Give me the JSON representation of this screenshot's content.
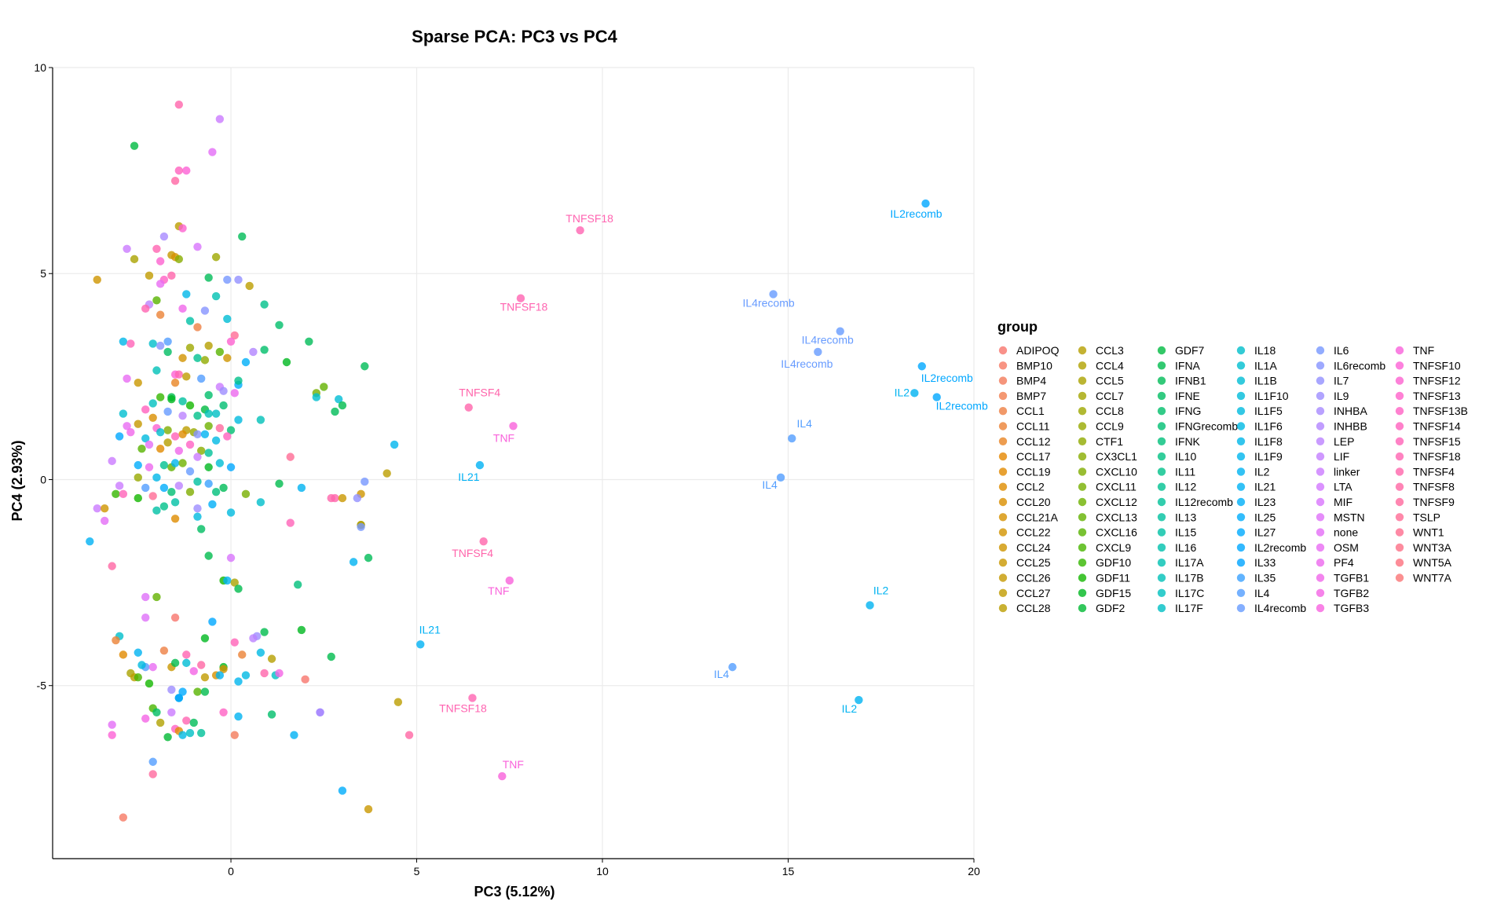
{
  "chart_data": {
    "type": "scatter",
    "title": "Sparse PCA: PC3 vs PC4",
    "xlabel": "PC3 (5.12%)",
    "ylabel": "PC4 (2.93%)",
    "xlim": [
      -4.8,
      20
    ],
    "ylim": [
      -9.2,
      10
    ],
    "x_ticks": [
      0,
      5,
      10,
      15,
      20
    ],
    "y_ticks": [
      -5,
      0,
      5,
      10
    ],
    "grid": true,
    "legend_position": "right",
    "legend_title": "group",
    "groups": [
      "ADIPOQ",
      "BMP10",
      "BMP4",
      "BMP7",
      "CCL1",
      "CCL11",
      "CCL12",
      "CCL17",
      "CCL19",
      "CCL2",
      "CCL20",
      "CCL21A",
      "CCL22",
      "CCL24",
      "CCL25",
      "CCL26",
      "CCL27",
      "CCL28",
      "CCL3",
      "CCL4",
      "CCL5",
      "CCL7",
      "CCL8",
      "CCL9",
      "CTF1",
      "CX3CL1",
      "CXCL10",
      "CXCL11",
      "CXCL12",
      "CXCL13",
      "CXCL16",
      "CXCL9",
      "GDF10",
      "GDF11",
      "GDF15",
      "GDF2",
      "GDF7",
      "IFNA",
      "IFNB1",
      "IFNE",
      "IFNG",
      "IFNGrecomb",
      "IFNK",
      "IL10",
      "IL11",
      "IL12",
      "IL12recomb",
      "IL13",
      "IL15",
      "IL16",
      "IL17A",
      "IL17B",
      "IL17C",
      "IL17F",
      "IL18",
      "IL1A",
      "IL1B",
      "IL1F10",
      "IL1F5",
      "IL1F6",
      "IL1F8",
      "IL1F9",
      "IL2",
      "IL21",
      "IL23",
      "IL25",
      "IL27",
      "IL2recomb",
      "IL33",
      "IL35",
      "IL4",
      "IL4recomb",
      "IL6",
      "IL6recomb",
      "IL7",
      "IL9",
      "INHBA",
      "INHBB",
      "LEP",
      "LIF",
      "linker",
      "LTA",
      "MIF",
      "MSTN",
      "none",
      "OSM",
      "PF4",
      "TGFB1",
      "TGFB2",
      "TGFB3",
      "TNF",
      "TNFSF10",
      "TNFSF12",
      "TNFSF13",
      "TNFSF13B",
      "TNFSF14",
      "TNFSF15",
      "TNFSF18",
      "TNFSF4",
      "TNFSF8",
      "TNFSF9",
      "TSLP",
      "WNT1",
      "WNT3A",
      "WNT5A",
      "WNT7A"
    ],
    "labeled_points": [
      {
        "x": 9.4,
        "y": 6.05,
        "group": "TNFSF18",
        "label": "TNFSF18"
      },
      {
        "x": 7.8,
        "y": 4.4,
        "group": "TNFSF18",
        "label": "TNFSF18"
      },
      {
        "x": 6.4,
        "y": 1.75,
        "group": "TNFSF4",
        "label": "TNFSF4"
      },
      {
        "x": 7.6,
        "y": 1.3,
        "group": "TNF",
        "label": "TNF"
      },
      {
        "x": 6.7,
        "y": 0.35,
        "group": "IL21",
        "label": "IL21"
      },
      {
        "x": 6.8,
        "y": -1.5,
        "group": "TNFSF4",
        "label": "TNFSF4"
      },
      {
        "x": 7.5,
        "y": -2.45,
        "group": "TNF",
        "label": "TNF"
      },
      {
        "x": 5.1,
        "y": -4.0,
        "group": "IL21",
        "label": "IL21"
      },
      {
        "x": 6.5,
        "y": -5.3,
        "group": "TNFSF18",
        "label": "TNFSF18"
      },
      {
        "x": 7.3,
        "y": -7.2,
        "group": "TNF",
        "label": "TNF"
      },
      {
        "x": 18.7,
        "y": 6.7,
        "group": "IL2recomb",
        "label": "IL2recomb"
      },
      {
        "x": 14.6,
        "y": 4.5,
        "group": "IL4recomb",
        "label": "IL4recomb"
      },
      {
        "x": 16.4,
        "y": 3.6,
        "group": "IL4recomb",
        "label": "IL4recomb"
      },
      {
        "x": 15.8,
        "y": 3.1,
        "group": "IL4recomb",
        "label": "IL4recomb"
      },
      {
        "x": 18.6,
        "y": 2.75,
        "group": "IL2recomb",
        "label": "IL2recomb"
      },
      {
        "x": 18.4,
        "y": 2.1,
        "group": "IL2",
        "label": "IL2"
      },
      {
        "x": 19.0,
        "y": 2.0,
        "group": "IL2recomb",
        "label": "IL2recomb"
      },
      {
        "x": 15.1,
        "y": 1.0,
        "group": "IL4",
        "label": "IL4"
      },
      {
        "x": 14.8,
        "y": 0.05,
        "group": "IL4",
        "label": "IL4"
      },
      {
        "x": 17.2,
        "y": -3.05,
        "group": "IL2",
        "label": "IL2"
      },
      {
        "x": 13.5,
        "y": -4.55,
        "group": "IL4",
        "label": "IL4"
      },
      {
        "x": 16.9,
        "y": -5.35,
        "group": "IL2",
        "label": "IL2"
      }
    ],
    "points": [
      [
        -1.4,
        9.1,
        98
      ],
      [
        -0.3,
        8.75,
        80
      ],
      [
        -2.6,
        8.1,
        36
      ],
      [
        -0.5,
        7.95,
        84
      ],
      [
        -1.2,
        7.5,
        91
      ],
      [
        -1.4,
        7.5,
        95
      ],
      [
        -1.5,
        7.25,
        99
      ],
      [
        -1.4,
        6.15,
        17
      ],
      [
        -1.3,
        6.1,
        92
      ],
      [
        0.3,
        5.9,
        38
      ],
      [
        -1.8,
        5.9,
        76
      ],
      [
        -0.9,
        5.65,
        82
      ],
      [
        -2.8,
        5.6,
        80
      ],
      [
        -2.0,
        5.6,
        97
      ],
      [
        -1.6,
        5.45,
        15
      ],
      [
        -1.5,
        5.4,
        11
      ],
      [
        -2.6,
        5.35,
        20
      ],
      [
        -0.4,
        5.4,
        22
      ],
      [
        -1.9,
        5.3,
        92
      ],
      [
        -1.4,
        5.35,
        25
      ],
      [
        -3.6,
        4.85,
        13
      ],
      [
        -1.8,
        4.85,
        94
      ],
      [
        -2.2,
        4.95,
        16
      ],
      [
        -1.6,
        4.95,
        98
      ],
      [
        -1.9,
        4.75,
        85
      ],
      [
        -0.6,
        4.9,
        38
      ],
      [
        -0.1,
        4.85,
        72
      ],
      [
        0.2,
        4.85,
        74
      ],
      [
        0.5,
        4.7,
        17
      ],
      [
        0.9,
        4.25,
        44
      ],
      [
        -2.2,
        4.25,
        78
      ],
      [
        -2.0,
        4.35,
        30
      ],
      [
        -1.2,
        4.5,
        60
      ],
      [
        -0.4,
        4.45,
        50
      ],
      [
        -1.3,
        4.15,
        87
      ],
      [
        -2.3,
        4.15,
        97
      ],
      [
        -1.9,
        4.0,
        5
      ],
      [
        -0.7,
        4.1,
        73
      ],
      [
        -0.1,
        3.9,
        56
      ],
      [
        -1.1,
        3.85,
        48
      ],
      [
        1.3,
        3.75,
        40
      ],
      [
        -0.9,
        3.7,
        4
      ],
      [
        0.1,
        3.5,
        101
      ],
      [
        -2.1,
        3.3,
        54
      ],
      [
        -1.7,
        3.35,
        70
      ],
      [
        -2.9,
        3.35,
        60
      ],
      [
        -1.9,
        3.25,
        73
      ],
      [
        -2.7,
        3.3,
        96
      ],
      [
        -0.6,
        3.25,
        18
      ],
      [
        0.0,
        3.35,
        92
      ],
      [
        -1.7,
        3.1,
        39
      ],
      [
        -1.1,
        3.2,
        22
      ],
      [
        -0.3,
        3.1,
        30
      ],
      [
        0.6,
        3.1,
        77
      ],
      [
        2.1,
        3.35,
        38
      ],
      [
        0.9,
        3.15,
        40
      ],
      [
        -0.9,
        2.95,
        45
      ],
      [
        -1.3,
        2.95,
        12
      ],
      [
        -0.7,
        2.9,
        24
      ],
      [
        -0.1,
        2.95,
        13
      ],
      [
        0.4,
        2.85,
        64
      ],
      [
        1.5,
        2.85,
        34
      ],
      [
        3.6,
        2.75,
        38
      ],
      [
        -2.0,
        2.65,
        51
      ],
      [
        -1.5,
        2.55,
        91
      ],
      [
        -1.4,
        2.55,
        97
      ],
      [
        -1.2,
        2.5,
        16
      ],
      [
        -2.8,
        2.45,
        85
      ],
      [
        -1.5,
        2.35,
        6
      ],
      [
        -0.8,
        2.45,
        70
      ],
      [
        -0.3,
        2.25,
        80
      ],
      [
        0.2,
        2.3,
        65
      ],
      [
        0.2,
        2.4,
        44
      ],
      [
        2.5,
        2.25,
        29
      ],
      [
        -2.5,
        2.35,
        14
      ],
      [
        -0.2,
        2.15,
        75
      ],
      [
        0.1,
        2.1,
        86
      ],
      [
        2.3,
        2.1,
        27
      ],
      [
        2.3,
        2.0,
        55
      ],
      [
        -1.6,
        2.0,
        37
      ],
      [
        -0.6,
        2.05,
        40
      ],
      [
        -1.9,
        2.0,
        32
      ],
      [
        -1.3,
        1.9,
        47
      ],
      [
        -1.1,
        1.8,
        33
      ],
      [
        -1.6,
        1.95,
        34
      ],
      [
        -2.1,
        1.85,
        52
      ],
      [
        -0.2,
        1.8,
        41
      ],
      [
        2.9,
        1.95,
        56
      ],
      [
        3.0,
        1.8,
        37
      ],
      [
        2.8,
        1.65,
        38
      ],
      [
        -2.3,
        1.7,
        95
      ],
      [
        -2.9,
        1.6,
        55
      ],
      [
        -1.7,
        1.65,
        71
      ],
      [
        -1.3,
        1.55,
        78
      ],
      [
        -0.7,
        1.7,
        36
      ],
      [
        -0.4,
        1.6,
        53
      ],
      [
        -0.9,
        1.55,
        44
      ],
      [
        -0.6,
        1.6,
        51
      ],
      [
        -2.1,
        1.5,
        10
      ],
      [
        -2.5,
        1.35,
        15
      ],
      [
        -2.8,
        1.3,
        85
      ],
      [
        -2.0,
        1.25,
        92
      ],
      [
        -1.2,
        1.2,
        17
      ],
      [
        -1.7,
        1.2,
        26
      ],
      [
        -1.9,
        1.15,
        54
      ],
      [
        -1.3,
        1.1,
        9
      ],
      [
        -1.0,
        1.15,
        23
      ],
      [
        -0.6,
        1.3,
        28
      ],
      [
        -0.3,
        1.25,
        100
      ],
      [
        0.0,
        1.2,
        41
      ],
      [
        0.8,
        1.45,
        51
      ],
      [
        0.2,
        1.45,
        58
      ],
      [
        -1.5,
        1.05,
        96
      ],
      [
        -2.3,
        1.0,
        58
      ],
      [
        -3.0,
        1.05,
        67
      ],
      [
        -2.7,
        1.15,
        87
      ],
      [
        -0.9,
        1.1,
        73
      ],
      [
        -0.7,
        1.1,
        62
      ],
      [
        -0.1,
        1.05,
        95
      ],
      [
        -1.7,
        0.9,
        18
      ],
      [
        -1.1,
        0.85,
        94
      ],
      [
        -2.4,
        0.75,
        30
      ],
      [
        -1.9,
        0.75,
        8
      ],
      [
        -2.2,
        0.85,
        84
      ],
      [
        -0.8,
        0.7,
        25
      ],
      [
        -0.4,
        0.95,
        59
      ],
      [
        -0.6,
        0.65,
        46
      ],
      [
        -1.4,
        0.7,
        87
      ],
      [
        -0.9,
        0.55,
        80
      ],
      [
        -3.2,
        0.45,
        80
      ],
      [
        -2.5,
        0.35,
        65
      ],
      [
        -2.2,
        0.3,
        86
      ],
      [
        -1.8,
        0.35,
        45
      ],
      [
        -1.6,
        0.3,
        29
      ],
      [
        -1.5,
        0.4,
        61
      ],
      [
        -1.3,
        0.4,
        28
      ],
      [
        -0.6,
        0.3,
        34
      ],
      [
        -0.3,
        0.4,
        56
      ],
      [
        -1.1,
        0.2,
        71
      ],
      [
        0.0,
        0.3,
        67
      ],
      [
        1.6,
        0.55,
        101
      ],
      [
        4.2,
        0.15,
        17
      ],
      [
        4.4,
        0.85,
        61
      ],
      [
        -2.5,
        0.05,
        23
      ],
      [
        -2.0,
        0.05,
        60
      ],
      [
        -3.0,
        -0.15,
        80
      ],
      [
        -2.3,
        -0.2,
        70
      ],
      [
        -1.8,
        -0.2,
        65
      ],
      [
        -1.4,
        -0.15,
        78
      ],
      [
        -0.6,
        -0.1,
        69
      ],
      [
        -0.9,
        -0.05,
        47
      ],
      [
        -0.2,
        -0.2,
        38
      ],
      [
        3.6,
        -0.05,
        72
      ],
      [
        1.3,
        -0.1,
        37
      ],
      [
        1.9,
        -0.2,
        62
      ],
      [
        -3.1,
        -0.35,
        32
      ],
      [
        -2.9,
        -0.35,
        96
      ],
      [
        -2.5,
        -0.45,
        33
      ],
      [
        -2.1,
        -0.4,
        101
      ],
      [
        -1.6,
        -0.3,
        41
      ],
      [
        -1.1,
        -0.3,
        26
      ],
      [
        -0.4,
        -0.3,
        42
      ],
      [
        0.4,
        -0.35,
        27
      ],
      [
        3.5,
        -0.35,
        13
      ],
      [
        -3.6,
        -0.7,
        80
      ],
      [
        -3.4,
        -0.7,
        13
      ],
      [
        -1.8,
        -0.65,
        44
      ],
      [
        -1.5,
        -0.55,
        48
      ],
      [
        -0.9,
        -0.7,
        75
      ],
      [
        -0.5,
        -0.6,
        64
      ],
      [
        0.8,
        -0.55,
        54
      ],
      [
        2.7,
        -0.45,
        98
      ],
      [
        2.8,
        -0.45,
        98
      ],
      [
        3.0,
        -0.45,
        14
      ],
      [
        3.4,
        -0.45,
        74
      ],
      [
        -3.4,
        -1.0,
        84
      ],
      [
        -2.0,
        -0.75,
        48
      ],
      [
        -1.5,
        -0.95,
        9
      ],
      [
        -0.9,
        -0.9,
        58
      ],
      [
        0.0,
        -0.8,
        58
      ],
      [
        1.6,
        -1.05,
        96
      ],
      [
        3.5,
        -1.1,
        26
      ],
      [
        3.5,
        -1.1,
        17
      ],
      [
        3.5,
        -1.15,
        72
      ],
      [
        -3.8,
        -1.5,
        63
      ],
      [
        -0.8,
        -1.2,
        39
      ],
      [
        -3.2,
        -2.1,
        99
      ],
      [
        -0.6,
        -1.85,
        37
      ],
      [
        0.0,
        -1.9,
        82
      ],
      [
        3.3,
        -2.0,
        62
      ],
      [
        3.7,
        -1.9,
        38
      ],
      [
        -0.2,
        -2.45,
        33
      ],
      [
        -0.1,
        -2.45,
        62
      ],
      [
        0.1,
        -2.5,
        20
      ],
      [
        1.8,
        -2.55,
        42
      ],
      [
        0.2,
        -2.65,
        37
      ],
      [
        -2.0,
        -2.85,
        29
      ],
      [
        -2.3,
        -2.85,
        83
      ],
      [
        -1.5,
        -3.35,
        0
      ],
      [
        -0.5,
        -3.45,
        67
      ],
      [
        -2.3,
        -3.35,
        83
      ],
      [
        -3.0,
        -3.8,
        54
      ],
      [
        -3.1,
        -3.9,
        5
      ],
      [
        -0.7,
        -3.85,
        34
      ],
      [
        0.7,
        -3.8,
        75
      ],
      [
        0.6,
        -3.85,
        78
      ],
      [
        0.9,
        -3.7,
        37
      ],
      [
        1.9,
        -3.65,
        34
      ],
      [
        0.3,
        -4.25,
        5
      ],
      [
        -2.9,
        -4.25,
        8
      ],
      [
        -2.5,
        -4.2,
        62
      ],
      [
        -1.8,
        -4.15,
        4
      ],
      [
        -1.2,
        -4.25,
        97
      ],
      [
        0.8,
        -4.2,
        59
      ],
      [
        1.1,
        -4.35,
        18
      ],
      [
        0.1,
        -3.95,
        96
      ],
      [
        2.7,
        -4.3,
        37
      ],
      [
        -2.3,
        -4.55,
        70
      ],
      [
        -2.4,
        -4.5,
        58
      ],
      [
        -2.1,
        -4.55,
        85
      ],
      [
        -1.6,
        -4.55,
        14
      ],
      [
        -1.5,
        -4.45,
        37
      ],
      [
        -1.2,
        -4.45,
        56
      ],
      [
        -0.8,
        -4.5,
        99
      ],
      [
        -0.2,
        -4.55,
        34
      ],
      [
        -0.2,
        -4.6,
        12
      ],
      [
        -2.7,
        -4.7,
        20
      ],
      [
        -2.6,
        -4.8,
        17
      ],
      [
        -2.5,
        -4.8,
        31
      ],
      [
        -2.2,
        -4.95,
        33
      ],
      [
        -1.0,
        -4.65,
        88
      ],
      [
        -0.7,
        -4.8,
        16
      ],
      [
        -0.4,
        -4.75,
        11
      ],
      [
        -0.3,
        -4.75,
        62
      ],
      [
        0.4,
        -4.75,
        59
      ],
      [
        0.9,
        -4.7,
        98
      ],
      [
        1.2,
        -4.75,
        53
      ],
      [
        1.3,
        -4.7,
        88
      ],
      [
        2.0,
        -4.85,
        0
      ],
      [
        0.2,
        -4.9,
        61
      ],
      [
        -1.3,
        -5.15,
        66
      ],
      [
        -1.6,
        -5.1,
        75
      ],
      [
        -1.4,
        -5.3,
        57
      ],
      [
        -0.9,
        -5.15,
        30
      ],
      [
        -0.7,
        -5.15,
        37
      ],
      [
        -1.4,
        -5.3,
        68
      ],
      [
        -2.1,
        -5.55,
        31
      ],
      [
        -2.3,
        -5.8,
        88
      ],
      [
        -2.0,
        -5.65,
        39
      ],
      [
        -1.6,
        -5.65,
        80
      ],
      [
        -0.2,
        -5.65,
        94
      ],
      [
        -1.9,
        -5.9,
        19
      ],
      [
        -1.2,
        -5.85,
        97
      ],
      [
        -1.0,
        -5.9,
        38
      ],
      [
        2.4,
        -5.65,
        72
      ],
      [
        2.4,
        -5.65,
        77
      ],
      [
        1.1,
        -5.7,
        40
      ],
      [
        0.2,
        -5.75,
        62
      ],
      [
        -1.5,
        -6.05,
        94
      ],
      [
        -1.4,
        -6.1,
        9
      ],
      [
        -3.2,
        -5.95,
        84
      ],
      [
        -3.2,
        -6.2,
        91
      ],
      [
        -1.7,
        -6.25,
        35
      ],
      [
        -1.3,
        -6.2,
        59
      ],
      [
        -1.1,
        -6.15,
        53
      ],
      [
        -0.8,
        -6.15,
        46
      ],
      [
        0.1,
        -6.2,
        2
      ],
      [
        1.7,
        -6.2,
        63
      ],
      [
        4.8,
        -6.2,
        99
      ],
      [
        -2.1,
        -6.85,
        70
      ],
      [
        -2.1,
        -7.15,
        100
      ],
      [
        3.0,
        -7.55,
        65
      ],
      [
        3.7,
        -8.0,
        14
      ],
      [
        -2.9,
        -8.2,
        1
      ],
      [
        4.5,
        -5.4,
        17
      ]
    ]
  }
}
